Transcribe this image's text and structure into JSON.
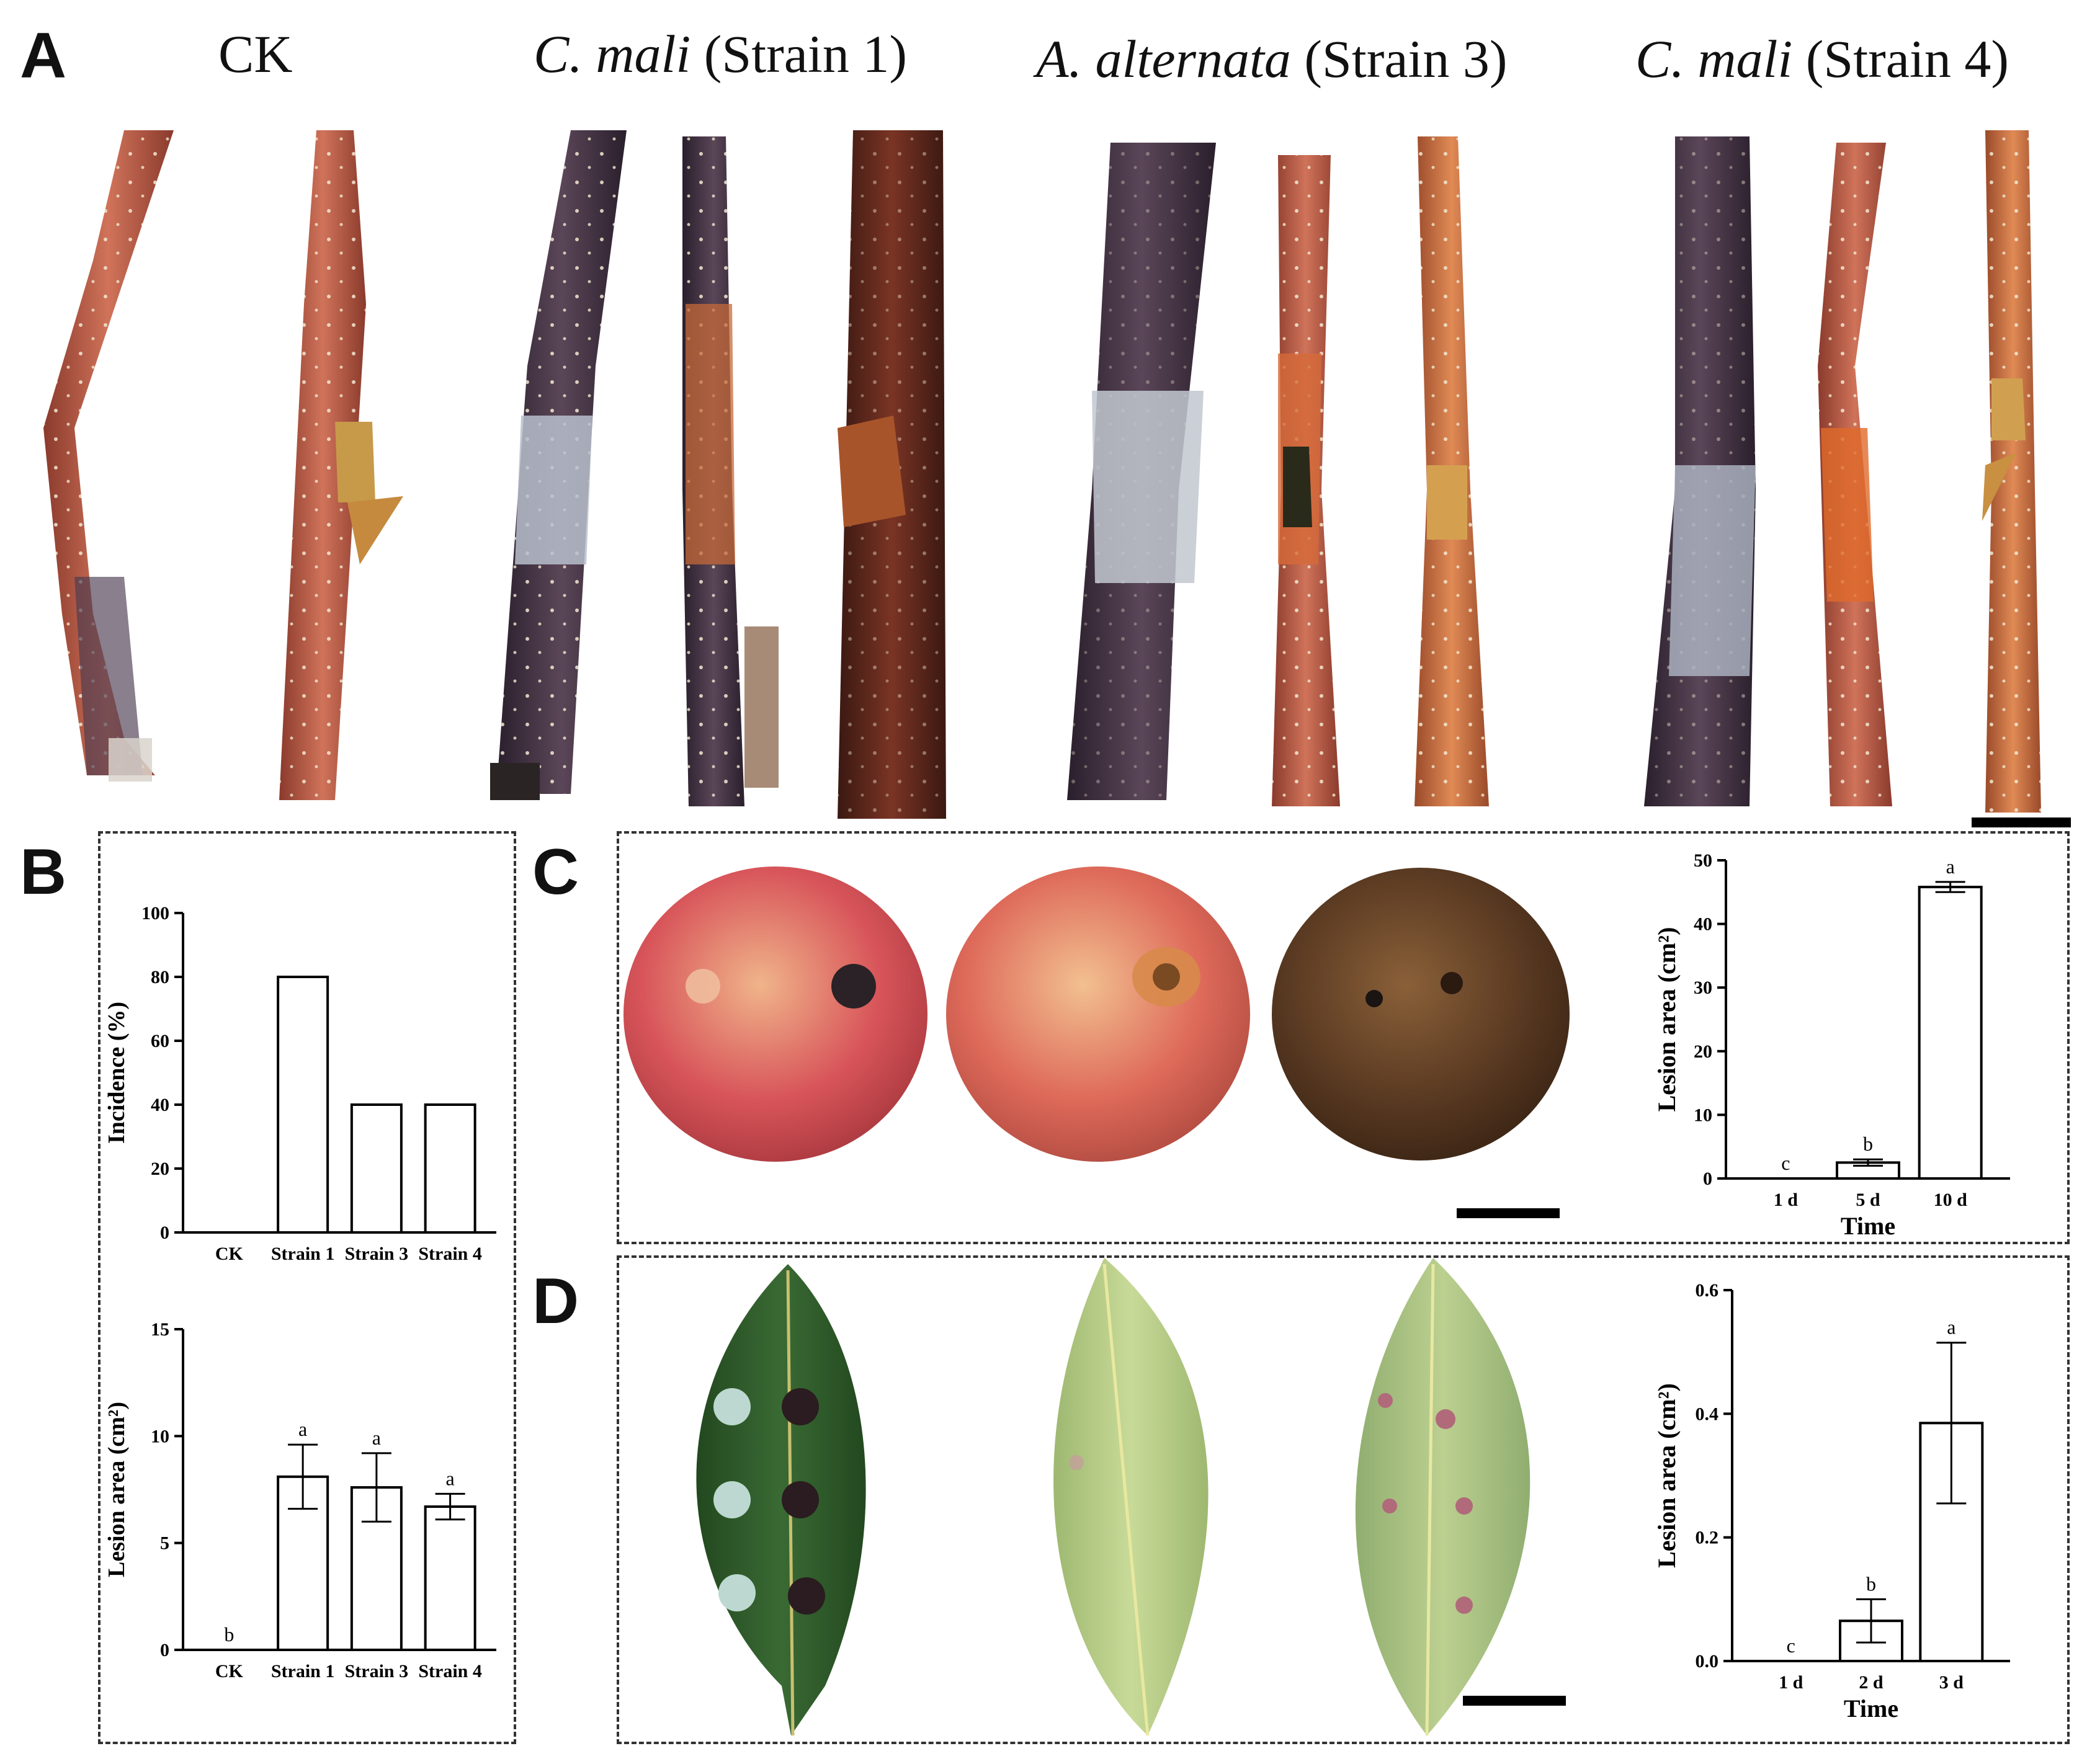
{
  "figure": {
    "panel_A": {
      "letter": "A",
      "group_titles": [
        {
          "plain_before": "",
          "italic": "",
          "plain_after": "CK"
        },
        {
          "plain_before": "",
          "italic": "C. mali",
          "plain_after": " (Strain 1)"
        },
        {
          "plain_before": "",
          "italic": "A. alternata",
          "plain_after": " (Strain 3)"
        },
        {
          "plain_before": "",
          "italic": "C. mali",
          "plain_after": " (Strain 4)"
        }
      ]
    },
    "panel_B": {
      "letter": "B"
    },
    "panel_C": {
      "letter": "C"
    },
    "panel_D": {
      "letter": "D"
    }
  },
  "colors": {
    "bark_dark": "#3b2a3a",
    "bark_red": "#b5523e",
    "bark_orange": "#d07a4a",
    "apple_red": "#d8555a",
    "apple_yellow": "#e9b07a",
    "apple_rot": "#5a3a22",
    "leaf_dark": "#2f5a2c",
    "leaf_light": "#b9cf84",
    "bar_fill": "#ffffff",
    "axis": "#000000"
  },
  "chart_data": [
    {
      "id": "B-top",
      "type": "bar",
      "categories": [
        "CK",
        "Strain 1",
        "Strain 3",
        "Strain 4"
      ],
      "values": [
        0,
        80,
        40,
        40
      ],
      "title": "",
      "xlabel": "",
      "ylabel": "Incidence (%)",
      "ylim": [
        0,
        100
      ],
      "yticks": [
        0,
        20,
        40,
        60,
        80,
        100
      ],
      "letters": [
        "",
        "",
        "",
        ""
      ],
      "errors": [
        0,
        0,
        0,
        0
      ]
    },
    {
      "id": "B-bottom",
      "type": "bar",
      "categories": [
        "CK",
        "Strain 1",
        "Strain 3",
        "Strain 4"
      ],
      "values": [
        0,
        8.1,
        7.6,
        6.7
      ],
      "errors": [
        0,
        1.5,
        1.6,
        0.6
      ],
      "letters": [
        "b",
        "a",
        "a",
        "a"
      ],
      "title": "",
      "xlabel": "",
      "ylabel": "Lesion area (cm²)",
      "ylim": [
        0,
        15
      ],
      "yticks": [
        0,
        5,
        10,
        15
      ]
    },
    {
      "id": "C",
      "type": "bar",
      "categories": [
        "1 d",
        "5 d",
        "10 d"
      ],
      "values": [
        0,
        2.5,
        45.8
      ],
      "errors": [
        0,
        0.5,
        0.8
      ],
      "letters": [
        "c",
        "b",
        "a"
      ],
      "title": "",
      "xlabel": "Time",
      "ylabel": "Lesion area (cm²)",
      "ylim": [
        0,
        50
      ],
      "yticks": [
        0,
        10,
        20,
        30,
        40,
        50
      ]
    },
    {
      "id": "D",
      "type": "bar",
      "categories": [
        "1 d",
        "2 d",
        "3 d"
      ],
      "values": [
        0,
        0.065,
        0.385
      ],
      "errors": [
        0,
        0.035,
        0.13
      ],
      "letters": [
        "c",
        "b",
        "a"
      ],
      "title": "",
      "xlabel": "Time",
      "ylabel": "Lesion area (cm²)",
      "ylim": [
        0,
        0.6
      ],
      "yticks": [
        0.0,
        0.2,
        0.4,
        0.6
      ]
    }
  ]
}
